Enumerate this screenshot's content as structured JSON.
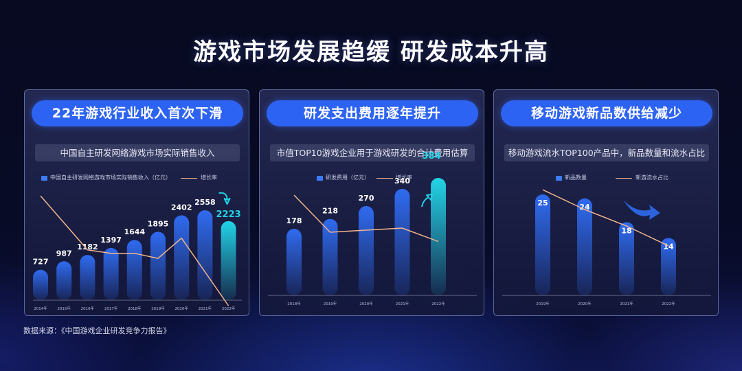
{
  "main_title": "游戏市场发展趋缓   研发成本升高",
  "source_note": "数据来源：《中国游戏企业研发竞争力报告》",
  "chart_data": [
    {
      "type": "bar",
      "header": "22年游戏行业收入首次下滑",
      "subtitle": "中国自主研发网络游戏市场实际销售收入",
      "bar_series_name": "中国自主研发网络游戏市场实际销售收入（亿元）",
      "line_series_name": "增长率",
      "categories": [
        "2014年",
        "2015年",
        "2016年",
        "2017年",
        "2018年",
        "2019年",
        "2020年",
        "2021年",
        "2022年"
      ],
      "values": [
        727,
        987,
        1182,
        1397,
        1644,
        1895,
        2402,
        2558,
        2223
      ],
      "line_values": [
        0.52,
        0.36,
        0.2,
        0.18,
        0.18,
        0.15,
        0.27,
        0.07,
        -0.13
      ],
      "highlight_last": true,
      "colors": {
        "bar": "#2f6bf0",
        "highlight": "#22d3e6",
        "line": "#f2b58c"
      }
    },
    {
      "type": "bar",
      "header": "研发支出费用逐年提升",
      "subtitle": "市值TOP10游戏企业用于游戏研发的合计费用估算",
      "bar_series_name": "研发费用（亿元）",
      "line_series_name": "增长率",
      "categories": [
        "2018年",
        "2019年",
        "2020年",
        "2021年",
        "2022年"
      ],
      "values": [
        178,
        218,
        270,
        340,
        384
      ],
      "line_values": [
        0.58,
        0.22,
        0.24,
        0.26,
        0.13
      ],
      "highlight_last": true,
      "colors": {
        "bar": "#2f6bf0",
        "highlight": "#22d3e6",
        "line": "#f2b58c"
      }
    },
    {
      "type": "bar",
      "header": "移动游戏新品数供给减少",
      "subtitle": "移动游戏流水TOP100产品中，新品数量和流水占比",
      "bar_series_name": "新品数量",
      "line_series_name": "新游流水占比",
      "categories": [
        "2019年",
        "2020年",
        "2021年",
        "2022年"
      ],
      "values": [
        25,
        24,
        18,
        14
      ],
      "line_values": [
        0.78,
        0.6,
        0.45,
        0.27
      ],
      "highlight_last": false,
      "colors": {
        "bar": "#2f6bf0",
        "highlight": "#2f6bf0",
        "line": "#f2b58c"
      }
    }
  ]
}
